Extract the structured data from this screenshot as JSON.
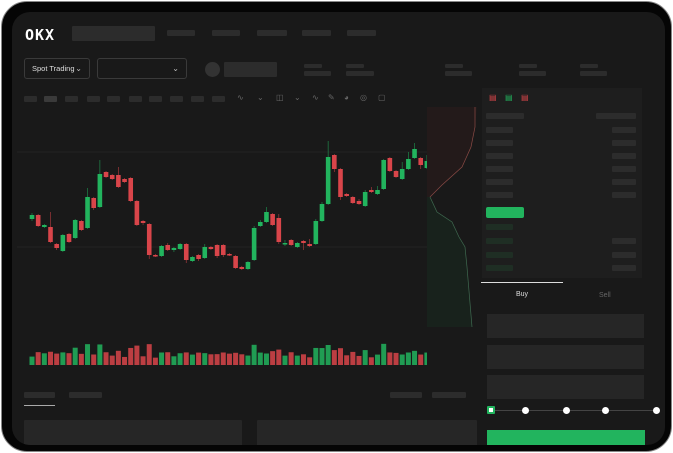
{
  "header": {
    "logo": "OKX"
  },
  "market_bar": {
    "mode_select": "Spot Trading",
    "pair_select": ""
  },
  "trade_form": {
    "tabs": [
      "Buy",
      "Sell"
    ],
    "active_tab": "Buy"
  },
  "colors": {
    "up": "#22b45e",
    "down": "#d9454a",
    "background": "#191919",
    "accent": "#22b45e"
  },
  "chart_data": {
    "type": "candlestick",
    "candles": [
      [
        93,
        97,
        99,
        91
      ],
      [
        97,
        86,
        98,
        85
      ],
      [
        85,
        87,
        88,
        84
      ],
      [
        85,
        70,
        100,
        69
      ],
      [
        68,
        64,
        69,
        62
      ],
      [
        61,
        77,
        78,
        60
      ],
      [
        78,
        70,
        79,
        69
      ],
      [
        74,
        92,
        93,
        73
      ],
      [
        91,
        82,
        92,
        81
      ],
      [
        84,
        115,
        124,
        83
      ],
      [
        114,
        104,
        115,
        102
      ],
      [
        105,
        138,
        152,
        104
      ],
      [
        140,
        135,
        141,
        134
      ],
      [
        137,
        133,
        138,
        132
      ],
      [
        137,
        125,
        145,
        124
      ],
      [
        133,
        130,
        134,
        129
      ],
      [
        134,
        111,
        135,
        110
      ],
      [
        111,
        87,
        112,
        86
      ],
      [
        91,
        89,
        92,
        87
      ],
      [
        88,
        57,
        89,
        53
      ],
      [
        57,
        56,
        58,
        55
      ],
      [
        56,
        66,
        67,
        55
      ],
      [
        67,
        62,
        69,
        61
      ],
      [
        62,
        64,
        65,
        60
      ],
      [
        63,
        68,
        69,
        62
      ],
      [
        68,
        52,
        69,
        49
      ],
      [
        51,
        55,
        56,
        50
      ],
      [
        57,
        53,
        58,
        51
      ],
      [
        54,
        65,
        68,
        53
      ],
      [
        65,
        63,
        66,
        62
      ],
      [
        67,
        56,
        68,
        54
      ],
      [
        67,
        57,
        68,
        55
      ],
      [
        58,
        57,
        59,
        56
      ],
      [
        56,
        44,
        57,
        43
      ],
      [
        45,
        43,
        46,
        42
      ],
      [
        43,
        50,
        51,
        42
      ],
      [
        52,
        84,
        86,
        51
      ],
      [
        86,
        90,
        92,
        85
      ],
      [
        90,
        100,
        105,
        89
      ],
      [
        98,
        87,
        99,
        86
      ],
      [
        94,
        70,
        98,
        68
      ],
      [
        68,
        69,
        72,
        66
      ],
      [
        72,
        67,
        73,
        66
      ],
      [
        65,
        69,
        70,
        64
      ],
      [
        71,
        69,
        72,
        62
      ],
      [
        68,
        66,
        73,
        65
      ],
      [
        68,
        91,
        93,
        67
      ],
      [
        91,
        108,
        110,
        90
      ],
      [
        108,
        155,
        171,
        107
      ],
      [
        157,
        143,
        158,
        140
      ],
      [
        143,
        115,
        144,
        112
      ],
      [
        118,
        116,
        119,
        115
      ],
      [
        115,
        109,
        116,
        108
      ],
      [
        111,
        108,
        113,
        107
      ],
      [
        106,
        120,
        122,
        105
      ],
      [
        122,
        120,
        125,
        119
      ],
      [
        118,
        122,
        126,
        117
      ],
      [
        123,
        152,
        153,
        122
      ],
      [
        154,
        141,
        155,
        140
      ],
      [
        141,
        135,
        142,
        134
      ],
      [
        133,
        143,
        150,
        132
      ],
      [
        143,
        153,
        160,
        142
      ],
      [
        154,
        163,
        169,
        153
      ],
      [
        154,
        147,
        155,
        143
      ],
      [
        144,
        151,
        157,
        143
      ]
    ]
  }
}
